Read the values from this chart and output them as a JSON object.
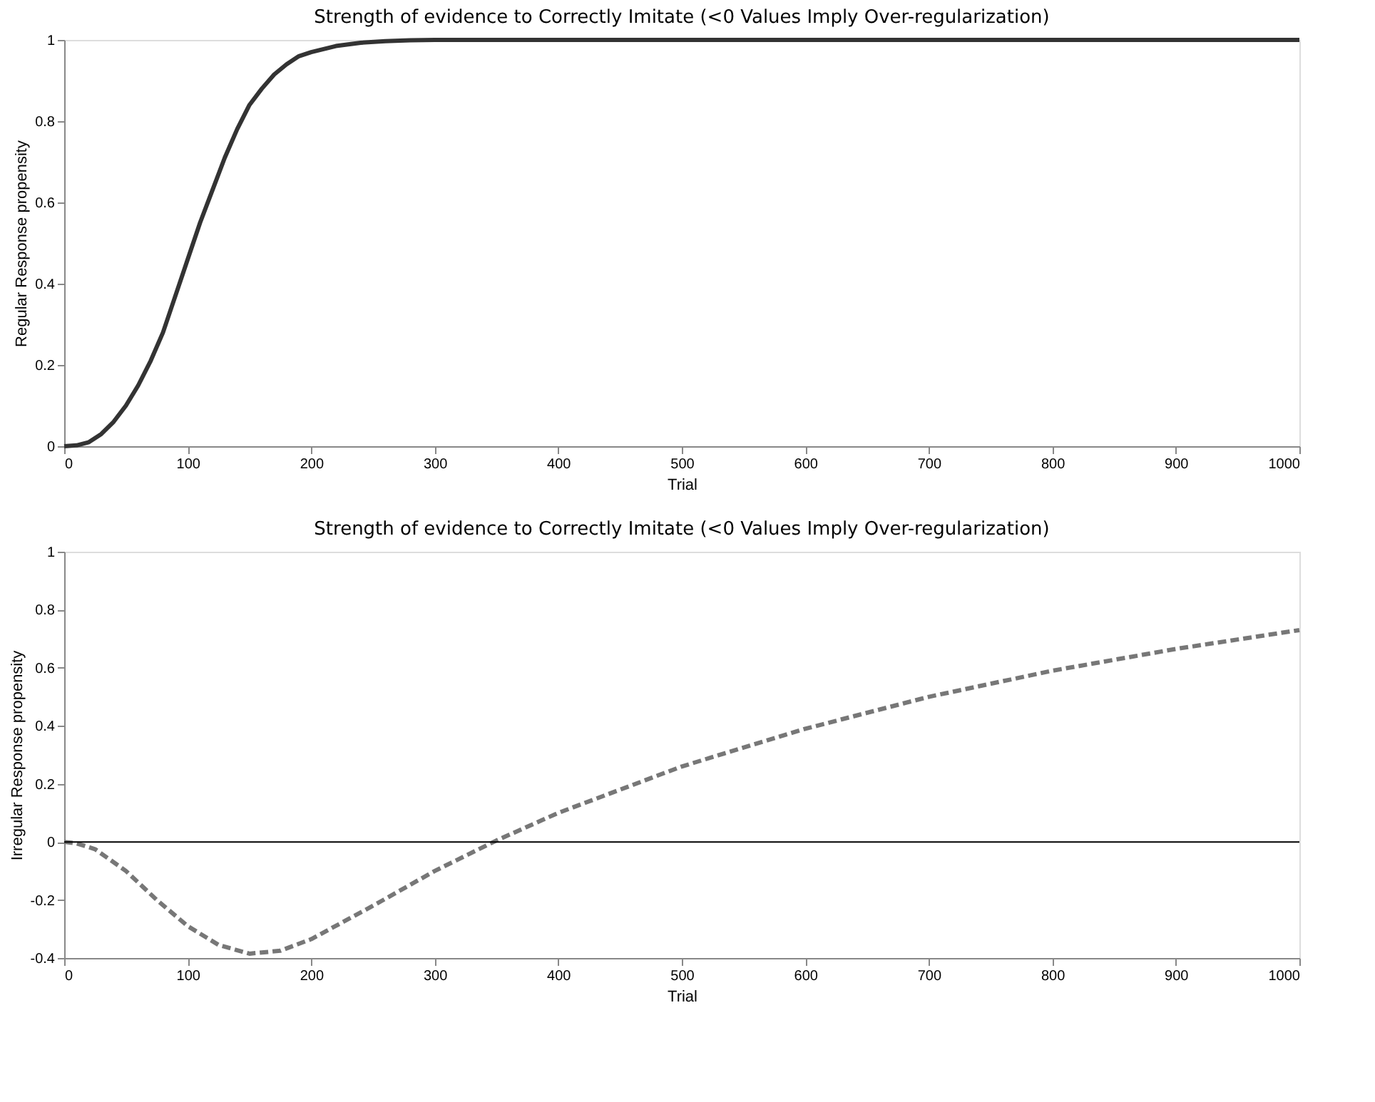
{
  "chart_data": [
    {
      "type": "line",
      "title": "Strength of evidence to Correctly Imitate (<0 Values Imply Over-regularization)",
      "xlabel": "Trial",
      "ylabel": "Regular Response propensity",
      "xlim": [
        0,
        1000
      ],
      "ylim": [
        0,
        1
      ],
      "xticks": [
        0,
        100,
        200,
        300,
        400,
        500,
        600,
        700,
        800,
        900,
        1000
      ],
      "yticks": [
        0,
        0.2,
        0.4,
        0.6,
        0.8,
        1
      ],
      "grid": false,
      "line_style": "solid",
      "series": [
        {
          "color": "#333333",
          "x": [
            0,
            10,
            20,
            30,
            40,
            50,
            60,
            70,
            80,
            90,
            100,
            110,
            120,
            130,
            140,
            150,
            160,
            170,
            180,
            190,
            200,
            220,
            240,
            260,
            280,
            300,
            350,
            400,
            500,
            600,
            700,
            800,
            900,
            1000
          ],
          "values": [
            0,
            0.002,
            0.01,
            0.03,
            0.06,
            0.1,
            0.15,
            0.21,
            0.28,
            0.37,
            0.46,
            0.55,
            0.63,
            0.71,
            0.78,
            0.84,
            0.88,
            0.915,
            0.94,
            0.96,
            0.97,
            0.985,
            0.993,
            0.997,
            0.999,
            1,
            1,
            1,
            1,
            1,
            1,
            1,
            1,
            1
          ]
        }
      ]
    },
    {
      "type": "line",
      "title": "Strength of evidence to Correctly Imitate (<0 Values Imply Over-regularization)",
      "xlabel": "Trial",
      "ylabel": "Irregular Response propensity",
      "xlim": [
        0,
        1000
      ],
      "ylim": [
        -0.4,
        1
      ],
      "xticks": [
        0,
        100,
        200,
        300,
        400,
        500,
        600,
        700,
        800,
        900,
        1000
      ],
      "yticks": [
        -0.4,
        -0.2,
        0,
        0.2,
        0.4,
        0.6,
        0.8,
        1
      ],
      "grid": false,
      "line_style": "dashed",
      "ref_lines": [
        {
          "axis": "y",
          "value": 0,
          "color": "#000000"
        }
      ],
      "series": [
        {
          "color": "#777777",
          "x": [
            0,
            10,
            25,
            50,
            75,
            100,
            125,
            150,
            175,
            200,
            250,
            300,
            350,
            400,
            450,
            500,
            600,
            700,
            800,
            900,
            1000
          ],
          "values": [
            0,
            -0.005,
            -0.025,
            -0.1,
            -0.2,
            -0.29,
            -0.355,
            -0.385,
            -0.375,
            -0.335,
            -0.22,
            -0.1,
            0.005,
            0.1,
            0.18,
            0.26,
            0.39,
            0.5,
            0.59,
            0.665,
            0.73
          ]
        }
      ]
    }
  ]
}
